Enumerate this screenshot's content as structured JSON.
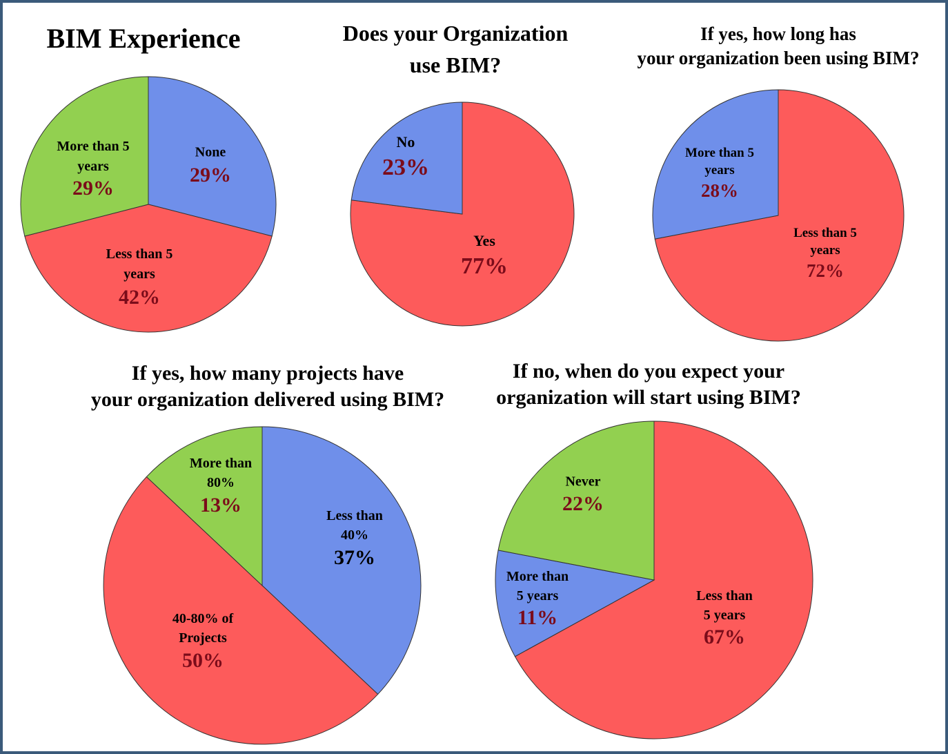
{
  "chart_data": [
    {
      "type": "pie",
      "title": "BIM Experience",
      "categories": [
        "None",
        "Less than 5 years",
        "More than 5 years"
      ],
      "values": [
        29,
        42,
        29
      ],
      "value_labels": [
        "29%",
        "42%",
        "29%"
      ],
      "colors": [
        "#6f8fea",
        "#fd5b5b",
        "#92d050"
      ],
      "value_label_colors": [
        "#7b0c1a",
        "#7b0c1a",
        "#7b0c1a"
      ]
    },
    {
      "type": "pie",
      "title": "Does your Organization use BIM?",
      "categories": [
        "Yes",
        "No"
      ],
      "values": [
        77,
        23
      ],
      "value_labels": [
        "77%",
        "23%"
      ],
      "colors": [
        "#fd5b5b",
        "#6f8fea"
      ],
      "value_label_colors": [
        "#7b0c1a",
        "#7b0c1a"
      ]
    },
    {
      "type": "pie",
      "title": "If yes, how long has your organization been using BIM?",
      "categories": [
        "Less than 5 years",
        "More than 5 years"
      ],
      "values": [
        72,
        28
      ],
      "value_labels": [
        "72%",
        "28%"
      ],
      "colors": [
        "#fd5b5b",
        "#6f8fea"
      ],
      "value_label_colors": [
        "#7b0c1a",
        "#7b0c1a"
      ]
    },
    {
      "type": "pie",
      "title": "If yes, how many projects have your organization delivered using BIM?",
      "categories": [
        "Less than 40%",
        "40-80% of Projects",
        "More than 80%"
      ],
      "values": [
        37,
        50,
        13
      ],
      "value_labels": [
        "37%",
        "50%",
        "13%"
      ],
      "colors": [
        "#6f8fea",
        "#fd5b5b",
        "#92d050"
      ],
      "value_label_colors": [
        "#000000",
        "#7b0c1a",
        "#7b0c1a"
      ]
    },
    {
      "type": "pie",
      "title": "If no, when do you expect your organization will start using BIM?",
      "categories": [
        "Less than 5 years",
        "More than 5 years",
        "Never"
      ],
      "values": [
        67,
        11,
        22
      ],
      "value_labels": [
        "67%",
        "11%",
        "22%"
      ],
      "colors": [
        "#fd5b5b",
        "#6f8fea",
        "#92d050"
      ],
      "value_label_colors": [
        "#7b0c1a",
        "#7b0c1a",
        "#7b0c1a"
      ]
    }
  ]
}
